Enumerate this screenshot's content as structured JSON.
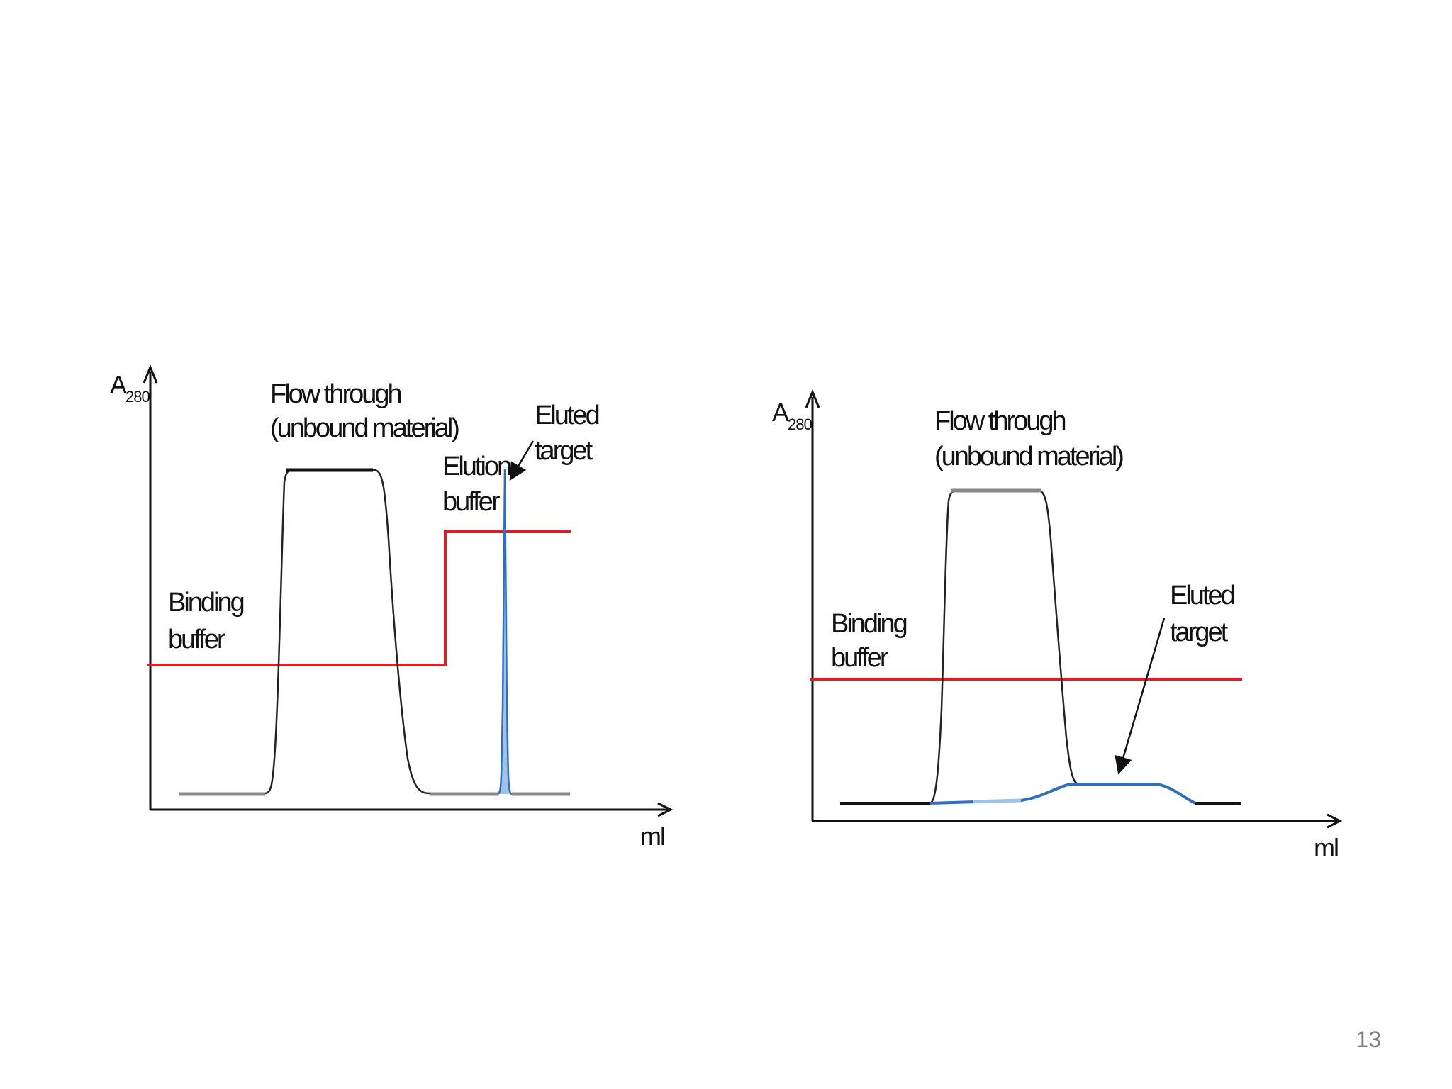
{
  "page_number": "13",
  "diagrams": [
    {
      "y_axis_label": "A",
      "y_axis_subscript": "280",
      "x_axis_label": "ml",
      "flow_through_line1": "Flow through",
      "flow_through_line2": "(unbound material)",
      "binding_buffer_line1": "Binding",
      "binding_buffer_line2": "buffer",
      "elution_buffer_line1": "Elution",
      "elution_buffer_line2": "buffer",
      "eluted_target_line1": "Eluted",
      "eluted_target_line2": "target"
    },
    {
      "y_axis_label": "A",
      "y_axis_subscript": "280",
      "x_axis_label": "ml",
      "flow_through_line1": "Flow through",
      "flow_through_line2": "(unbound material)",
      "binding_buffer_line1": "Binding",
      "binding_buffer_line2": "buffer",
      "eluted_target_line1": "Eluted",
      "eluted_target_line2": "target"
    }
  ],
  "colors": {
    "buffer_line": "#e31b23",
    "target_peak": "#2f6fc0",
    "absorbance_trace": "#222222",
    "axis": "#111111",
    "page_number": "#7f7f7f"
  }
}
